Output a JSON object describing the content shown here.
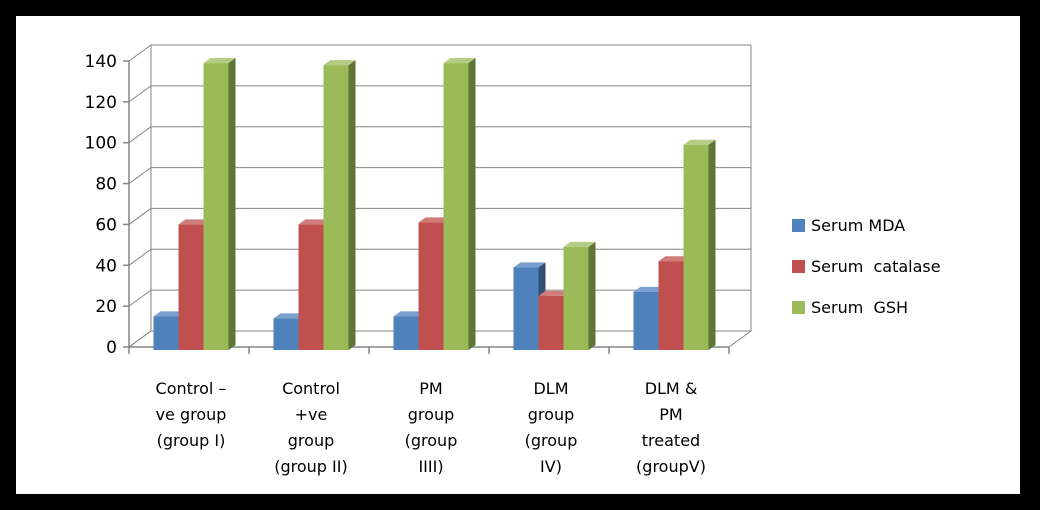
{
  "chart_data": {
    "type": "bar",
    "style": "3d-clustered-column",
    "title": "",
    "xlabel": "",
    "ylabel": "",
    "ylim": [
      0,
      140
    ],
    "y_ticks": [
      "0",
      "20",
      "40",
      "60",
      "80",
      "100",
      "120",
      "140"
    ],
    "grid": true,
    "legend_position": "right",
    "categories": [
      [
        "Control –",
        "ve group",
        "(group I)"
      ],
      [
        "Control",
        "+ve",
        "group",
        "(group II)"
      ],
      [
        "PM",
        "group",
        "(group",
        "IIII)"
      ],
      [
        "DLM",
        "group",
        "(group",
        "IV)"
      ],
      [
        "DLM &",
        "PM",
        "treated",
        "(groupV)"
      ]
    ],
    "series": [
      {
        "name": "Serum MDA",
        "color": "#4F81BD",
        "values": [
          15,
          14,
          15,
          39,
          27
        ]
      },
      {
        "name": "Serum  catalase",
        "color": "#C0504D",
        "values": [
          60,
          60,
          61,
          25,
          42
        ]
      },
      {
        "name": "Serum  GSH",
        "color": "#9BBB59",
        "values": [
          139,
          138,
          139,
          49,
          99
        ]
      }
    ]
  }
}
